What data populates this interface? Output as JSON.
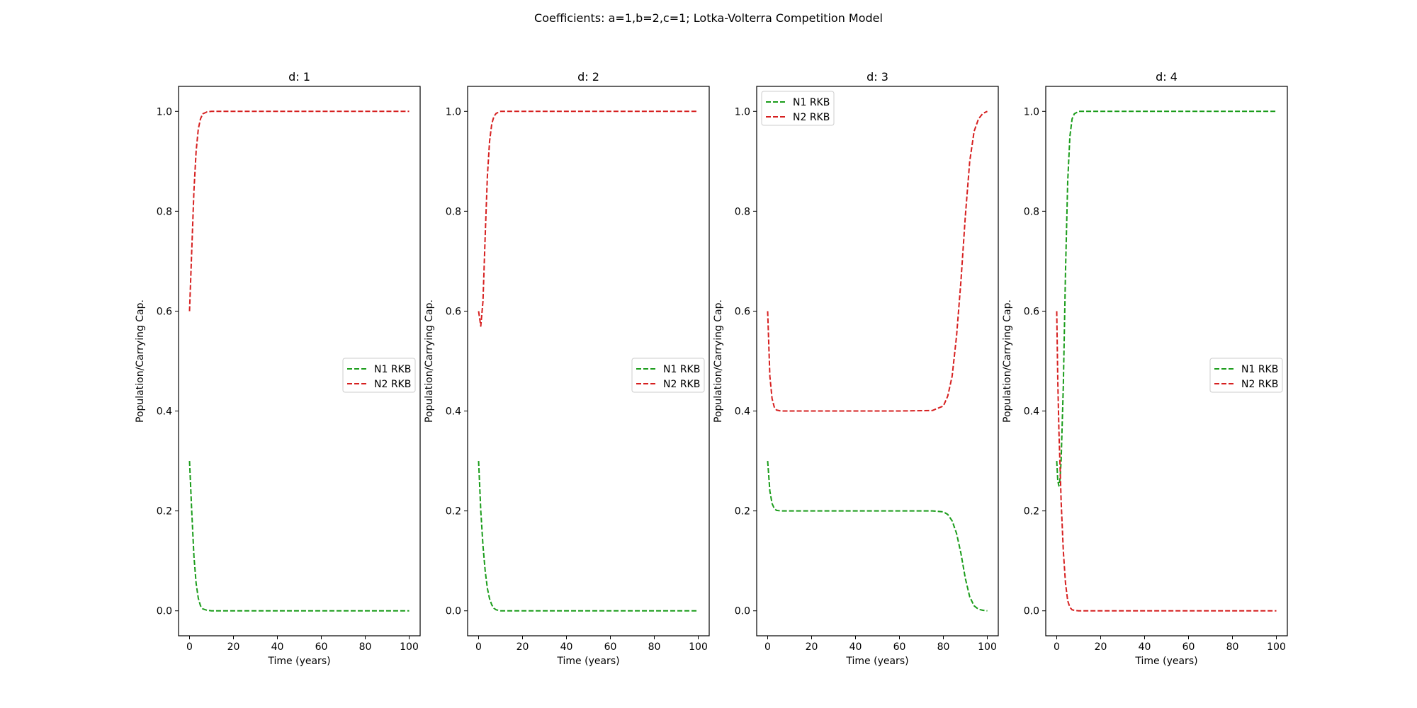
{
  "figure": {
    "suptitle": "Coefficients: a=1,b=2,c=1; Lotka-Volterra Competition Model"
  },
  "chart_data": [
    {
      "type": "line",
      "title": "d: 1",
      "xlabel": "Time (years)",
      "ylabel": "Population/Carrying Cap.",
      "xlim": [
        -5,
        105
      ],
      "ylim": [
        -0.05,
        1.05
      ],
      "xticks": [
        0,
        20,
        40,
        60,
        80,
        100
      ],
      "xtick_labels": [
        "0",
        "20",
        "40",
        "60",
        "80",
        "100"
      ],
      "yticks": [
        0.0,
        0.2,
        0.4,
        0.6,
        0.8,
        1.0
      ],
      "ytick_labels": [
        "0.0",
        "0.2",
        "0.4",
        "0.6",
        "0.8",
        "1.0"
      ],
      "grid": false,
      "legend": "center-right",
      "series": [
        {
          "name": "N1 RKB",
          "color": "#1a9c1a",
          "linestyle": "dashed",
          "x": [
            0,
            1,
            2,
            3,
            4,
            5,
            6,
            8,
            10,
            20,
            40,
            60,
            80,
            100
          ],
          "y": [
            0.3,
            0.2,
            0.11,
            0.055,
            0.025,
            0.01,
            0.004,
            0.001,
            0.0,
            0.0,
            0.0,
            0.0,
            0.0,
            0.0
          ]
        },
        {
          "name": "N2 RKB",
          "color": "#d62020",
          "linestyle": "dashed",
          "x": [
            0,
            1,
            2,
            3,
            4,
            5,
            6,
            8,
            10,
            20,
            40,
            60,
            80,
            100
          ],
          "y": [
            0.6,
            0.72,
            0.84,
            0.92,
            0.965,
            0.985,
            0.995,
            0.999,
            1.0,
            1.0,
            1.0,
            1.0,
            1.0,
            1.0
          ]
        }
      ]
    },
    {
      "type": "line",
      "title": "d: 2",
      "xlabel": "Time (years)",
      "ylabel": "Population/Carrying Cap.",
      "xlim": [
        -5,
        105
      ],
      "ylim": [
        -0.05,
        1.05
      ],
      "xticks": [
        0,
        20,
        40,
        60,
        80,
        100
      ],
      "xtick_labels": [
        "0",
        "20",
        "40",
        "60",
        "80",
        "100"
      ],
      "yticks": [
        0.0,
        0.2,
        0.4,
        0.6,
        0.8,
        1.0
      ],
      "ytick_labels": [
        "0.0",
        "0.2",
        "0.4",
        "0.6",
        "0.8",
        "1.0"
      ],
      "grid": false,
      "legend": "center-right",
      "series": [
        {
          "name": "N1 RKB",
          "color": "#1a9c1a",
          "linestyle": "dashed",
          "x": [
            0,
            1,
            2,
            3,
            4,
            5,
            6,
            7,
            8,
            10,
            20,
            40,
            60,
            80,
            100
          ],
          "y": [
            0.3,
            0.2,
            0.13,
            0.08,
            0.045,
            0.024,
            0.012,
            0.005,
            0.002,
            0.0,
            0.0,
            0.0,
            0.0,
            0.0,
            0.0
          ]
        },
        {
          "name": "N2 RKB",
          "color": "#d62020",
          "linestyle": "dashed",
          "x": [
            0,
            1,
            2,
            3,
            4,
            5,
            6,
            7,
            8,
            10,
            20,
            40,
            60,
            80,
            100
          ],
          "y": [
            0.6,
            0.57,
            0.62,
            0.75,
            0.87,
            0.94,
            0.975,
            0.99,
            0.996,
            1.0,
            1.0,
            1.0,
            1.0,
            1.0,
            1.0
          ]
        }
      ]
    },
    {
      "type": "line",
      "title": "d: 3",
      "xlabel": "Time (years)",
      "ylabel": "Population/Carrying Cap.",
      "xlim": [
        -5,
        105
      ],
      "ylim": [
        -0.05,
        1.05
      ],
      "xticks": [
        0,
        20,
        40,
        60,
        80,
        100
      ],
      "xtick_labels": [
        "0",
        "20",
        "40",
        "60",
        "80",
        "100"
      ],
      "yticks": [
        0.0,
        0.2,
        0.4,
        0.6,
        0.8,
        1.0
      ],
      "ytick_labels": [
        "0.0",
        "0.2",
        "0.4",
        "0.6",
        "0.8",
        "1.0"
      ],
      "grid": false,
      "legend": "upper-left",
      "series": [
        {
          "name": "N1 RKB",
          "color": "#1a9c1a",
          "linestyle": "dashed",
          "x": [
            0,
            1,
            2,
            3,
            4,
            6,
            10,
            20,
            40,
            60,
            75,
            80,
            82,
            84,
            86,
            88,
            90,
            92,
            94,
            96,
            98,
            100
          ],
          "y": [
            0.3,
            0.24,
            0.215,
            0.205,
            0.201,
            0.2,
            0.2,
            0.2,
            0.2,
            0.2,
            0.2,
            0.198,
            0.193,
            0.18,
            0.155,
            0.115,
            0.065,
            0.028,
            0.01,
            0.003,
            0.001,
            0.0
          ]
        },
        {
          "name": "N2 RKB",
          "color": "#d62020",
          "linestyle": "dashed",
          "x": [
            0,
            1,
            2,
            3,
            4,
            6,
            10,
            20,
            40,
            60,
            75,
            80,
            82,
            84,
            86,
            88,
            90,
            92,
            94,
            96,
            98,
            100
          ],
          "y": [
            0.6,
            0.47,
            0.425,
            0.408,
            0.402,
            0.4,
            0.4,
            0.4,
            0.4,
            0.4,
            0.401,
            0.41,
            0.43,
            0.47,
            0.55,
            0.66,
            0.79,
            0.9,
            0.96,
            0.985,
            0.996,
            1.0
          ]
        }
      ]
    },
    {
      "type": "line",
      "title": "d: 4",
      "xlabel": "Time (years)",
      "ylabel": "Population/Carrying Cap.",
      "xlim": [
        -5,
        105
      ],
      "ylim": [
        -0.05,
        1.05
      ],
      "xticks": [
        0,
        20,
        40,
        60,
        80,
        100
      ],
      "xtick_labels": [
        "0",
        "20",
        "40",
        "60",
        "80",
        "100"
      ],
      "yticks": [
        0.0,
        0.2,
        0.4,
        0.6,
        0.8,
        1.0
      ],
      "ytick_labels": [
        "0.0",
        "0.2",
        "0.4",
        "0.6",
        "0.8",
        "1.0"
      ],
      "grid": false,
      "legend": "center-right",
      "series": [
        {
          "name": "N1 RKB",
          "color": "#1a9c1a",
          "linestyle": "dashed",
          "x": [
            0,
            0.5,
            1,
            1.5,
            2,
            3,
            4,
            5,
            6,
            7,
            8,
            10,
            20,
            40,
            60,
            80,
            100
          ],
          "y": [
            0.3,
            0.26,
            0.25,
            0.265,
            0.3,
            0.45,
            0.68,
            0.86,
            0.95,
            0.985,
            0.995,
            1.0,
            1.0,
            1.0,
            1.0,
            1.0,
            1.0
          ]
        },
        {
          "name": "N2 RKB",
          "color": "#d62020",
          "linestyle": "dashed",
          "x": [
            0,
            0.5,
            1,
            1.5,
            2,
            3,
            4,
            5,
            6,
            7,
            8,
            10,
            20,
            40,
            60,
            80,
            100
          ],
          "y": [
            0.6,
            0.46,
            0.36,
            0.29,
            0.22,
            0.12,
            0.055,
            0.02,
            0.007,
            0.002,
            0.001,
            0.0,
            0.0,
            0.0,
            0.0,
            0.0,
            0.0
          ]
        }
      ]
    }
  ]
}
